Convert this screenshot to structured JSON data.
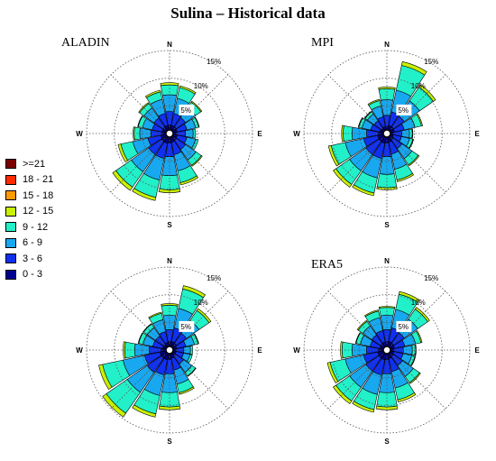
{
  "title": "Sulina – Historical data",
  "directions": [
    "N",
    "E",
    "S",
    "W"
  ],
  "ring_labels": [
    "5%",
    "10%",
    "15%"
  ],
  "legend": [
    {
      "label": ">=21",
      "color": "#7b0000"
    },
    {
      "label": "18 - 21",
      "color": "#ff2a00"
    },
    {
      "label": "15 - 18",
      "color": "#ff9a00"
    },
    {
      "label": "12 - 15",
      "color": "#c8f000"
    },
    {
      "label": "9 - 12",
      "color": "#22f0c8"
    },
    {
      "label": "6 - 9",
      "color": "#18a8f0"
    },
    {
      "label": "3 - 6",
      "color": "#1030f0"
    },
    {
      "label": "0 - 3",
      "color": "#000090"
    }
  ],
  "chart_data": [
    {
      "type": "windrose",
      "name": "ALADIN",
      "sectors": 16,
      "rings_percent": [
        5,
        10,
        15
      ],
      "bins": [
        "0 - 3",
        "3 - 6",
        "6 - 9",
        "9 - 12",
        "12 - 15",
        "15 - 18",
        "18 - 21",
        ">=21"
      ],
      "values": [
        [
          1.5,
          2.5,
          3.0,
          1.8,
          0.4,
          0,
          0,
          0
        ],
        [
          1.5,
          2.2,
          2.8,
          2.0,
          0.3,
          0,
          0,
          0
        ],
        [
          1.5,
          2.0,
          2.2,
          1.2,
          0.2,
          0,
          0,
          0
        ],
        [
          1.4,
          1.8,
          1.6,
          0.6,
          0.1,
          0,
          0,
          0
        ],
        [
          1.3,
          1.6,
          1.4,
          0.4,
          0,
          0,
          0,
          0
        ],
        [
          1.4,
          1.8,
          1.6,
          0.5,
          0,
          0,
          0,
          0
        ],
        [
          1.5,
          2.0,
          2.3,
          1.2,
          0.2,
          0,
          0,
          0
        ],
        [
          1.6,
          2.3,
          3.0,
          2.2,
          0.4,
          0,
          0,
          0
        ],
        [
          1.7,
          2.5,
          3.4,
          2.6,
          0.5,
          0,
          0,
          0
        ],
        [
          1.8,
          2.8,
          4.0,
          3.2,
          0.6,
          0,
          0,
          0
        ],
        [
          1.8,
          2.8,
          3.8,
          3.4,
          0.7,
          0,
          0,
          0
        ],
        [
          1.6,
          2.4,
          2.8,
          2.2,
          0.5,
          0,
          0,
          0
        ],
        [
          1.4,
          2.0,
          2.0,
          1.0,
          0.2,
          0,
          0,
          0
        ],
        [
          1.4,
          1.8,
          1.8,
          0.8,
          0.1,
          0,
          0,
          0
        ],
        [
          1.4,
          2.0,
          2.2,
          1.0,
          0.2,
          0,
          0,
          0
        ],
        [
          1.5,
          2.2,
          2.6,
          1.4,
          0.3,
          0,
          0,
          0
        ]
      ]
    },
    {
      "type": "windrose",
      "name": "MPI",
      "sectors": 16,
      "rings_percent": [
        5,
        10,
        15
      ],
      "bins": [
        "0 - 3",
        "3 - 6",
        "6 - 9",
        "9 - 12",
        "12 - 15",
        "15 - 18",
        "18 - 21",
        ">=21"
      ],
      "values": [
        [
          1.3,
          2.0,
          2.8,
          2.0,
          0.3,
          0,
          0,
          0
        ],
        [
          1.5,
          2.5,
          4.0,
          4.6,
          0.7,
          0,
          0,
          0
        ],
        [
          1.5,
          2.3,
          3.4,
          3.0,
          0.5,
          0,
          0,
          0
        ],
        [
          1.4,
          1.8,
          2.0,
          1.2,
          0.2,
          0,
          0,
          0
        ],
        [
          1.2,
          1.5,
          1.4,
          0.5,
          0.1,
          0,
          0,
          0
        ],
        [
          1.2,
          1.5,
          1.5,
          0.6,
          0.1,
          0,
          0,
          0
        ],
        [
          1.4,
          1.9,
          2.2,
          1.4,
          0.2,
          0,
          0,
          0
        ],
        [
          1.6,
          2.2,
          2.8,
          2.0,
          0.3,
          0,
          0,
          0
        ],
        [
          1.7,
          2.5,
          3.2,
          2.4,
          0.4,
          0,
          0,
          0
        ],
        [
          1.8,
          2.8,
          3.6,
          2.8,
          0.5,
          0,
          0,
          0
        ],
        [
          1.8,
          2.8,
          3.6,
          3.0,
          0.6,
          0,
          0,
          0
        ],
        [
          1.7,
          2.6,
          3.4,
          2.6,
          0.5,
          0,
          0,
          0
        ],
        [
          1.5,
          2.2,
          2.6,
          1.6,
          0.3,
          0,
          0,
          0
        ],
        [
          1.3,
          1.7,
          1.6,
          0.6,
          0.1,
          0,
          0,
          0
        ],
        [
          1.2,
          1.6,
          1.5,
          0.5,
          0.1,
          0,
          0,
          0
        ],
        [
          1.3,
          1.8,
          2.0,
          1.0,
          0.2,
          0,
          0,
          0
        ]
      ]
    },
    {
      "type": "windrose",
      "name": "",
      "sectors": 16,
      "rings_percent": [
        5,
        10,
        15
      ],
      "bins": [
        "0 - 3",
        "3 - 6",
        "6 - 9",
        "9 - 12",
        "12 - 15",
        "15 - 18",
        "18 - 21",
        ">=21"
      ],
      "values": [
        [
          1.5,
          2.2,
          2.6,
          1.8,
          0.3,
          0,
          0,
          0
        ],
        [
          1.6,
          2.5,
          3.6,
          3.6,
          0.6,
          0,
          0,
          0
        ],
        [
          1.5,
          2.2,
          2.8,
          2.2,
          0.4,
          0,
          0,
          0
        ],
        [
          1.3,
          1.7,
          1.6,
          0.7,
          0.1,
          0,
          0,
          0
        ],
        [
          1.2,
          1.4,
          1.2,
          0.4,
          0,
          0,
          0,
          0
        ],
        [
          1.2,
          1.4,
          1.2,
          0.4,
          0,
          0,
          0,
          0
        ],
        [
          1.3,
          1.8,
          1.8,
          0.8,
          0.1,
          0,
          0,
          0
        ],
        [
          1.5,
          2.2,
          2.6,
          1.6,
          0.3,
          0,
          0,
          0
        ],
        [
          1.7,
          2.6,
          3.4,
          2.6,
          0.5,
          0,
          0,
          0
        ],
        [
          1.8,
          2.8,
          3.8,
          3.4,
          0.6,
          0,
          0,
          0
        ],
        [
          1.9,
          3.0,
          4.4,
          4.6,
          0.8,
          0,
          0,
          0
        ],
        [
          1.8,
          2.8,
          4.0,
          3.8,
          0.7,
          0,
          0,
          0
        ],
        [
          1.5,
          2.2,
          2.6,
          1.8,
          0.3,
          0,
          0,
          0
        ],
        [
          1.3,
          1.8,
          1.8,
          0.8,
          0.1,
          0,
          0,
          0
        ],
        [
          1.3,
          1.8,
          1.8,
          0.8,
          0.1,
          0,
          0,
          0
        ],
        [
          1.4,
          2.0,
          2.2,
          1.2,
          0.2,
          0,
          0,
          0
        ]
      ]
    },
    {
      "type": "windrose",
      "name": "ERA5",
      "sectors": 16,
      "rings_percent": [
        5,
        10,
        15
      ],
      "bins": [
        "0 - 3",
        "3 - 6",
        "6 - 9",
        "9 - 12",
        "12 - 15",
        "15 - 18",
        "18 - 21",
        ">=21"
      ],
      "values": [
        [
          1.5,
          2.2,
          2.6,
          1.4,
          0.2,
          0,
          0,
          0
        ],
        [
          1.6,
          2.5,
          3.4,
          2.8,
          0.5,
          0,
          0,
          0
        ],
        [
          1.5,
          2.3,
          3.0,
          2.2,
          0.4,
          0,
          0,
          0
        ],
        [
          1.4,
          1.9,
          2.0,
          1.0,
          0.2,
          0,
          0,
          0
        ],
        [
          1.3,
          1.7,
          1.6,
          0.6,
          0.1,
          0,
          0,
          0
        ],
        [
          1.3,
          1.7,
          1.6,
          0.6,
          0.1,
          0,
          0,
          0
        ],
        [
          1.4,
          2.0,
          2.4,
          1.4,
          0.2,
          0,
          0,
          0
        ],
        [
          1.6,
          2.4,
          3.0,
          2.2,
          0.4,
          0,
          0,
          0
        ],
        [
          1.7,
          2.6,
          3.4,
          2.6,
          0.5,
          0,
          0,
          0
        ],
        [
          1.8,
          2.8,
          3.6,
          2.8,
          0.5,
          0,
          0,
          0
        ],
        [
          1.8,
          2.8,
          3.6,
          3.0,
          0.6,
          0,
          0,
          0
        ],
        [
          1.7,
          2.6,
          3.4,
          2.8,
          0.5,
          0,
          0,
          0
        ],
        [
          1.5,
          2.2,
          2.6,
          1.8,
          0.3,
          0,
          0,
          0
        ],
        [
          1.3,
          1.8,
          1.8,
          0.8,
          0.1,
          0,
          0,
          0
        ],
        [
          1.4,
          1.9,
          2.0,
          1.0,
          0.2,
          0,
          0,
          0
        ],
        [
          1.5,
          2.1,
          2.4,
          1.2,
          0.2,
          0,
          0,
          0
        ]
      ]
    }
  ]
}
